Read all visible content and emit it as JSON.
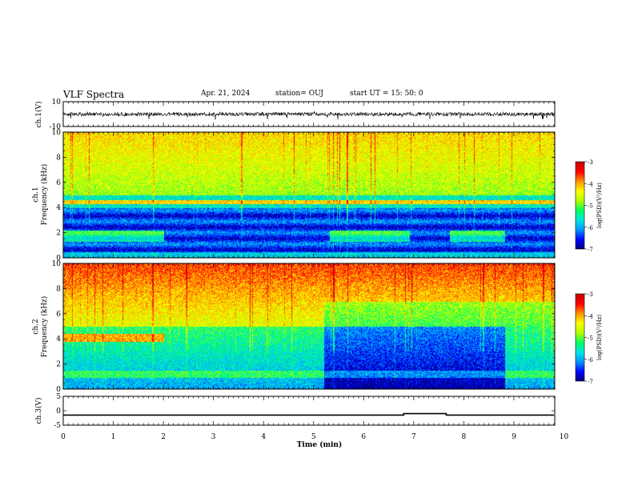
{
  "header": {
    "title": "VLF Spectra",
    "date": "Apr. 21, 2024",
    "station": "station= OUJ",
    "start_ut": "start  UT =   15: 50: 0"
  },
  "colors": {
    "spectrogram_scale": [
      "#00007a",
      "#0000ff",
      "#0096ff",
      "#00e6e6",
      "#00ff64",
      "#b4ff00",
      "#ffff00",
      "#ff9600",
      "#ff0000",
      "#c80000"
    ],
    "axis": "#000000",
    "trace": "#000000"
  },
  "chart_data": [
    {
      "type": "line",
      "panel": "ch1-waveform",
      "ylabel": "ch.1(V)",
      "ylim": [
        -10,
        10
      ],
      "y_tick_labels": [
        "10",
        "-10"
      ],
      "x_range_min": [
        0,
        10
      ],
      "description_values": {
        "baseline": 0,
        "typical_amplitude": 1.5
      }
    },
    {
      "type": "heatmap",
      "panel": "ch1-spectrogram",
      "ylabel": [
        "ch.1",
        "Frequency  (kHz)"
      ],
      "ylim": [
        0,
        10
      ],
      "y_tick_labels": [
        "0",
        "2",
        "4",
        "6",
        "8",
        "10"
      ],
      "colorbar": {
        "label": "log(PSD)(V²/Hz)",
        "range": [
          -7,
          -3
        ],
        "tick_labels": [
          "-3",
          "-4",
          "-5",
          "-6",
          "-7"
        ]
      }
    },
    {
      "type": "heatmap",
      "panel": "ch2-spectrogram",
      "ylabel": [
        "ch.2",
        "Frequency  (kHz)"
      ],
      "ylim": [
        0,
        10
      ],
      "y_tick_labels": [
        "0",
        "2",
        "4",
        "6",
        "8",
        "10"
      ],
      "colorbar": {
        "label": "log(PSD)(V²/Hz)",
        "range": [
          -7,
          -3
        ],
        "tick_labels": [
          "-3",
          "-4",
          "-5",
          "-6",
          "-7"
        ]
      }
    },
    {
      "type": "line",
      "panel": "ch3-waveform",
      "ylabel": "ch.3(V)",
      "ylim": [
        -5,
        5
      ],
      "y_tick_labels": [
        "5",
        "0",
        "-5"
      ],
      "xlabel": "Time  (min)",
      "xlim": [
        0,
        10
      ],
      "x_tick_labels": [
        "0",
        "1",
        "2",
        "3",
        "4",
        "5",
        "6",
        "7",
        "8",
        "9",
        "10"
      ],
      "series": [
        {
          "x": [
            0,
            6.8,
            6.8,
            7.65,
            7.65,
            9.8
          ],
          "y": [
            -1.5,
            -1.5,
            -1.0,
            -1.0,
            -1.5,
            -1.5
          ]
        }
      ]
    }
  ]
}
